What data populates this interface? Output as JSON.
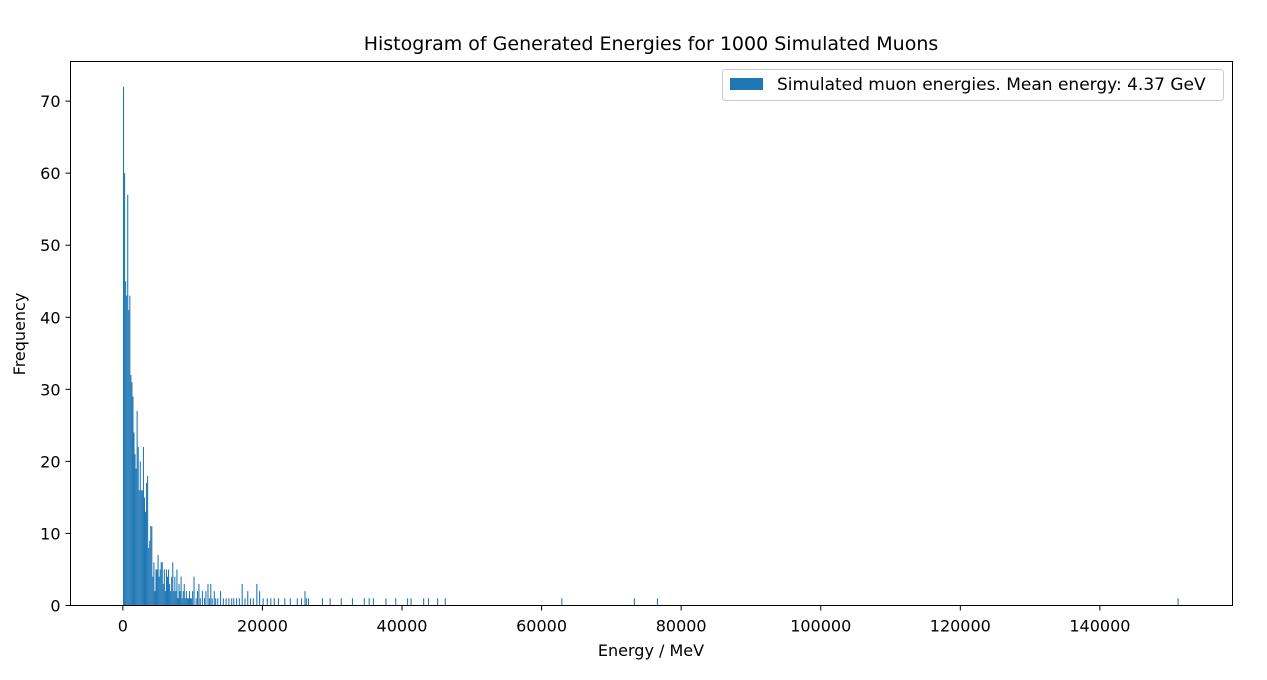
{
  "chart_data": {
    "type": "bar",
    "title": "Histogram of Generated Energies for 1000 Simulated Muons",
    "xlabel": "Energy / MeV",
    "ylabel": "Frequency",
    "xlim": [
      -7500,
      159000
    ],
    "ylim": [
      0,
      75.5
    ],
    "xticks": [
      0,
      20000,
      40000,
      60000,
      80000,
      100000,
      120000,
      140000
    ],
    "yticks": [
      0,
      10,
      20,
      30,
      40,
      50,
      60,
      70
    ],
    "legend": {
      "position": "top-right",
      "entries": [
        "Simulated muon energies. Mean energy: 4.37 GeV"
      ]
    },
    "grid": false,
    "series": [
      {
        "name": "Simulated muon energies. Mean energy: 4.37 GeV",
        "color": "#1f77b4",
        "bin_width": 152,
        "points": [
          [
            100,
            72
          ],
          [
            250,
            60
          ],
          [
            400,
            45
          ],
          [
            550,
            43
          ],
          [
            700,
            57
          ],
          [
            850,
            41
          ],
          [
            1000,
            43
          ],
          [
            1150,
            32
          ],
          [
            1300,
            31
          ],
          [
            1450,
            29
          ],
          [
            1600,
            24
          ],
          [
            1750,
            21
          ],
          [
            1900,
            19
          ],
          [
            2050,
            27
          ],
          [
            2200,
            22
          ],
          [
            2350,
            16
          ],
          [
            2500,
            20
          ],
          [
            2650,
            16
          ],
          [
            2800,
            16
          ],
          [
            2950,
            22
          ],
          [
            3100,
            15
          ],
          [
            3250,
            13
          ],
          [
            3400,
            17
          ],
          [
            3550,
            18
          ],
          [
            3700,
            8
          ],
          [
            3850,
            9
          ],
          [
            4000,
            11
          ],
          [
            4150,
            11
          ],
          [
            4300,
            4
          ],
          [
            4450,
            6
          ],
          [
            4600,
            2
          ],
          [
            4750,
            5
          ],
          [
            4900,
            5
          ],
          [
            5050,
            7
          ],
          [
            5200,
            4
          ],
          [
            5350,
            5
          ],
          [
            5500,
            6
          ],
          [
            5650,
            6
          ],
          [
            5800,
            3
          ],
          [
            5950,
            5
          ],
          [
            6100,
            2
          ],
          [
            6250,
            5
          ],
          [
            6400,
            4
          ],
          [
            6550,
            5
          ],
          [
            6700,
            3
          ],
          [
            6850,
            2
          ],
          [
            7000,
            4
          ],
          [
            7150,
            6
          ],
          [
            7300,
            2
          ],
          [
            7450,
            4
          ],
          [
            7600,
            2
          ],
          [
            7750,
            5
          ],
          [
            7900,
            1
          ],
          [
            8050,
            3
          ],
          [
            8200,
            2
          ],
          [
            8350,
            4
          ],
          [
            8500,
            1
          ],
          [
            8650,
            2
          ],
          [
            8800,
            3
          ],
          [
            8950,
            1
          ],
          [
            9100,
            2
          ],
          [
            9250,
            1
          ],
          [
            9400,
            1
          ],
          [
            9550,
            2
          ],
          [
            9700,
            1
          ],
          [
            9850,
            1
          ],
          [
            10000,
            2
          ],
          [
            10200,
            4
          ],
          [
            10500,
            1
          ],
          [
            10700,
            2
          ],
          [
            10900,
            3
          ],
          [
            11100,
            1
          ],
          [
            11400,
            2
          ],
          [
            11700,
            1
          ],
          [
            11900,
            2
          ],
          [
            12200,
            3
          ],
          [
            12400,
            1
          ],
          [
            12600,
            3
          ],
          [
            12800,
            1
          ],
          [
            13100,
            2
          ],
          [
            13300,
            1
          ],
          [
            13600,
            1
          ],
          [
            14000,
            2
          ],
          [
            14400,
            1
          ],
          [
            14800,
            1
          ],
          [
            15200,
            1
          ],
          [
            15600,
            1
          ],
          [
            15900,
            1
          ],
          [
            16300,
            1
          ],
          [
            16700,
            1
          ],
          [
            17100,
            3
          ],
          [
            17500,
            1
          ],
          [
            17900,
            2
          ],
          [
            18300,
            1
          ],
          [
            18700,
            1
          ],
          [
            19200,
            3
          ],
          [
            19600,
            2
          ],
          [
            20100,
            1
          ],
          [
            20700,
            1
          ],
          [
            21200,
            1
          ],
          [
            21700,
            1
          ],
          [
            22300,
            1
          ],
          [
            23200,
            1
          ],
          [
            24000,
            1
          ],
          [
            25000,
            1
          ],
          [
            25600,
            1
          ],
          [
            26100,
            2
          ],
          [
            26300,
            1
          ],
          [
            26600,
            1
          ],
          [
            28600,
            1
          ],
          [
            29700,
            1
          ],
          [
            31300,
            1
          ],
          [
            32900,
            1
          ],
          [
            34600,
            1
          ],
          [
            35300,
            1
          ],
          [
            35900,
            1
          ],
          [
            37700,
            1
          ],
          [
            39100,
            1
          ],
          [
            40800,
            1
          ],
          [
            41300,
            1
          ],
          [
            43100,
            1
          ],
          [
            43800,
            1
          ],
          [
            45100,
            1
          ],
          [
            46200,
            1
          ],
          [
            62900,
            1
          ],
          [
            73300,
            1
          ],
          [
            76600,
            1
          ],
          [
            151200,
            1
          ]
        ]
      }
    ]
  }
}
